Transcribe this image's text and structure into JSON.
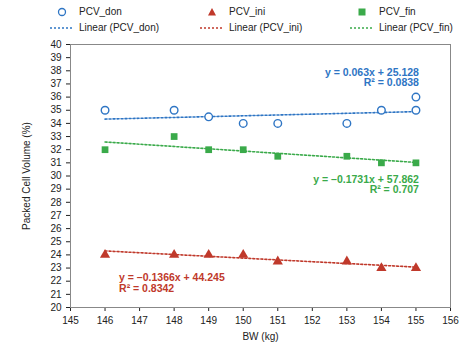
{
  "chart_data": {
    "type": "scatter",
    "x_label": "BW (kg)",
    "y_label": "Packed Cell Volume (%)",
    "xlim": [
      145,
      156
    ],
    "xticks": [
      145,
      146,
      147,
      148,
      149,
      150,
      151,
      152,
      153,
      154,
      155,
      156
    ],
    "ylim": [
      20,
      40
    ],
    "yticks": [
      20,
      21,
      22,
      23,
      24,
      25,
      26,
      27,
      28,
      29,
      30,
      31,
      32,
      33,
      34,
      35,
      36,
      37,
      38,
      39,
      40
    ],
    "grid": false,
    "legend": "top",
    "series": [
      {
        "name": "PCV_don",
        "color": "#2e75c4",
        "marker": "circle_open",
        "x": [
          146,
          148,
          149,
          150,
          151,
          153,
          154,
          155,
          155
        ],
        "values": [
          35,
          35,
          34.5,
          34,
          34,
          34,
          35,
          35,
          36
        ],
        "trendline": {
          "name": "Linear (PCV_don)",
          "line_style": "dotted",
          "slope": 0.063,
          "intercept": 25.128,
          "equation": "y = 0.063x + 25.128",
          "r2_label": "R² = 0.0838"
        }
      },
      {
        "name": "PCV_ini",
        "color": "#c0392b",
        "marker": "triangle",
        "x": [
          146,
          148,
          149,
          150,
          151,
          153,
          154,
          155
        ],
        "values": [
          24,
          24,
          24,
          24,
          23.5,
          23.5,
          23,
          23
        ],
        "trendline": {
          "name": "Linear (PCV_ini)",
          "line_style": "dotted",
          "slope": -0.1366,
          "intercept": 44.245,
          "equation": "y = –0.1366x + 44.245",
          "r2_label": "R² = 0.8342"
        }
      },
      {
        "name": "PCV_fin",
        "color": "#3aaa4a",
        "marker": "square",
        "x": [
          146,
          148,
          149,
          150,
          151,
          153,
          154,
          155
        ],
        "values": [
          32,
          33,
          32,
          32,
          31.5,
          31.5,
          31,
          31
        ],
        "trendline": {
          "name": "Linear (PCV_fin)",
          "line_style": "dotted",
          "slope": -0.1731,
          "intercept": 57.862,
          "equation": "y = –0.1731x + 57.862",
          "r2_label": "R² = 0.707"
        }
      }
    ]
  }
}
